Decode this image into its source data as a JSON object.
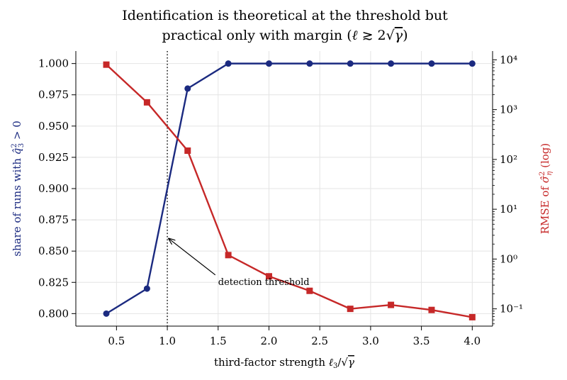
{
  "chart_data": {
    "type": "line",
    "title_line1": "Identification is theoretical at the threshold but",
    "title_line2_prefix": "practical only with margin (",
    "title_line2_suffix": ")",
    "xlabel_prefix": "third-factor strength ",
    "ylabel_left_prefix": "share of runs with ",
    "ylabel_left_suffix": " > 0",
    "ylabel_right_prefix": "RMSE of ",
    "ylabel_right_suffix": " (log)",
    "x": [
      0.4,
      0.8,
      1.2,
      1.6,
      2.0,
      2.4,
      2.8,
      3.2,
      3.6,
      4.0
    ],
    "xlim": [
      0.1,
      4.2
    ],
    "xticks": [
      0.5,
      1.0,
      1.5,
      2.0,
      2.5,
      3.0,
      3.5,
      4.0
    ],
    "xtick_labels": [
      "0.5",
      "1.0",
      "1.5",
      "2.0",
      "2.5",
      "3.0",
      "3.5",
      "4.0"
    ],
    "left_axis": {
      "ylim": [
        0.79,
        1.01
      ],
      "ticks": [
        0.8,
        0.825,
        0.85,
        0.875,
        0.9,
        0.925,
        0.95,
        0.975,
        1.0
      ],
      "tick_labels": [
        "0.800",
        "0.825",
        "0.850",
        "0.875",
        "0.900",
        "0.925",
        "0.950",
        "0.975",
        "1.000"
      ],
      "color": "#1b2a80"
    },
    "right_axis": {
      "scale": "log",
      "ylim": [
        0.045,
        15000
      ],
      "ticks": [
        0.1,
        1,
        10,
        100,
        1000,
        10000
      ],
      "tick_labels": [
        "10⁻¹",
        "10⁰",
        "10¹",
        "10²",
        "10³",
        "10⁴"
      ],
      "color": "#c62828"
    },
    "series": [
      {
        "axis": "left",
        "marker": "circle",
        "color": "#1b2a80",
        "values": [
          0.8,
          0.82,
          0.98,
          1.0,
          1.0,
          1.0,
          1.0,
          1.0,
          1.0,
          1.0
        ]
      },
      {
        "axis": "right",
        "marker": "square",
        "color": "#c62828",
        "values": [
          8000,
          1400,
          150,
          1.2,
          0.45,
          0.23,
          0.1,
          0.12,
          0.095,
          0.068
        ]
      }
    ],
    "threshold_x": 1.0,
    "annotation": {
      "text": "detection threshold",
      "target_x": 1.0,
      "target_y": 0.86,
      "text_x": 1.5,
      "text_y": 0.823
    },
    "grid": true
  }
}
